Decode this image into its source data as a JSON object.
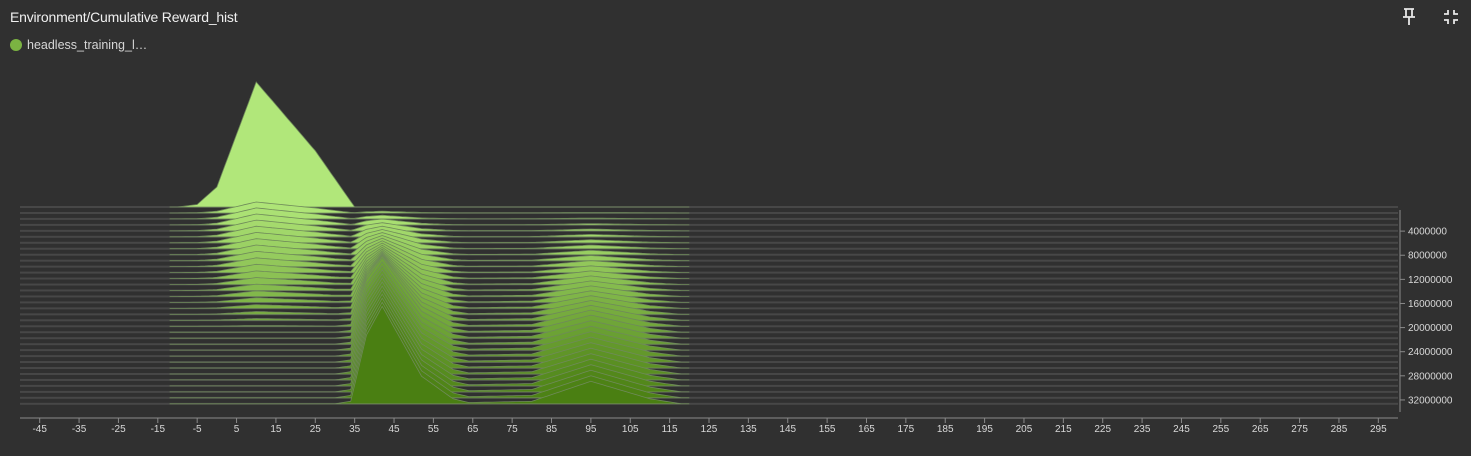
{
  "card": {
    "title": "Environment/Cumulative Reward_hist",
    "legend_label": "headless_training_l…",
    "run_color": "#7bb342"
  },
  "toolbar": {
    "pin_icon": "pin-icon",
    "collapse_icon": "collapse-icon"
  },
  "chart_data": {
    "type": "histogram-offset",
    "title": "Environment/Cumulative Reward_hist",
    "run": "headless_training_l…",
    "x_ticks": [
      -45,
      -35,
      -25,
      -15,
      -5,
      5,
      15,
      25,
      35,
      45,
      55,
      65,
      75,
      85,
      95,
      105,
      115,
      125,
      135,
      145,
      155,
      165,
      175,
      185,
      195,
      205,
      215,
      225,
      235,
      245,
      255,
      265,
      275,
      285,
      295
    ],
    "x_range": [
      -50,
      300
    ],
    "y_ticks": [
      "4000000",
      "8000000",
      "12000000",
      "16000000",
      "20000000",
      "24000000",
      "28000000",
      "32000000"
    ],
    "step_range": [
      0,
      34000000
    ],
    "histogram_count": 34,
    "colors": {
      "oldest": "#b1e77a",
      "newest": "#4a7f12",
      "outline": "#6f8a5a"
    },
    "series": [
      {
        "step": 0,
        "bins": [
          [
            -10,
            0
          ],
          [
            -5,
            0.02
          ],
          [
            0,
            0.16
          ],
          [
            10,
            1.0
          ],
          [
            25,
            0.45
          ],
          [
            35,
            0
          ]
        ]
      },
      {
        "step": 32500000,
        "bins": [
          [
            30,
            0
          ],
          [
            34,
            0.02
          ],
          [
            38,
            0.55
          ],
          [
            42,
            0.78
          ],
          [
            47,
            0.5
          ],
          [
            52,
            0.22
          ],
          [
            60,
            0.04
          ],
          [
            64,
            0.01
          ],
          [
            80,
            0.02
          ],
          [
            95,
            0.18
          ],
          [
            110,
            0.04
          ],
          [
            118,
            0
          ]
        ]
      }
    ]
  }
}
